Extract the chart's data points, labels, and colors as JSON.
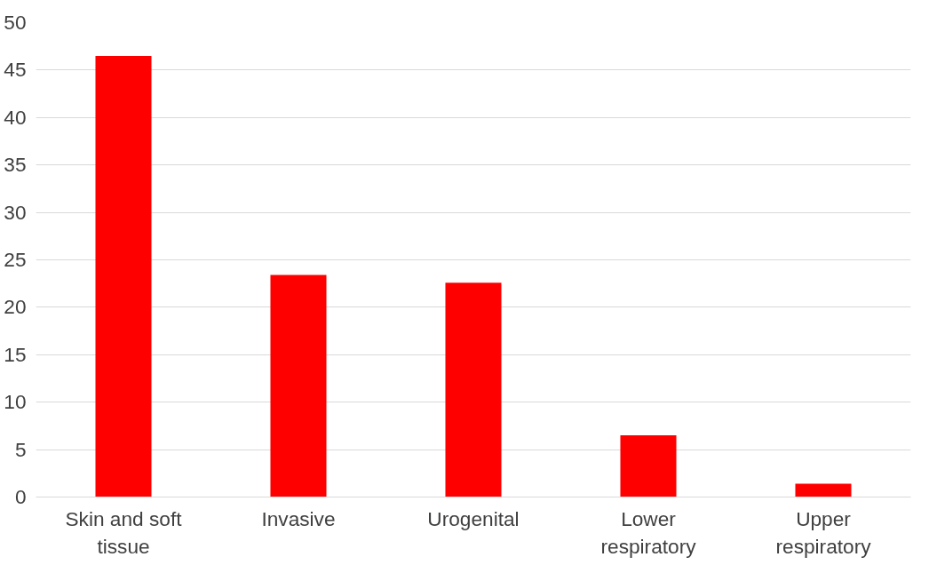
{
  "chart_data": {
    "type": "bar",
    "categories": [
      "Skin and soft tissue",
      "Invasive",
      "Urogenital",
      "Lower respiratory",
      "Upper respiratory"
    ],
    "values": [
      46.5,
      23.4,
      22.6,
      6.5,
      1.4
    ],
    "color": "#ff0000",
    "ylim": [
      0,
      50
    ],
    "yticks": [
      0,
      5,
      10,
      15,
      20,
      25,
      30,
      35,
      40,
      45,
      50
    ],
    "grid": "y"
  }
}
